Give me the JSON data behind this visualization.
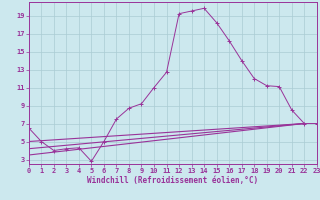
{
  "xlabel": "Windchill (Refroidissement éolien,°C)",
  "background_color": "#cce8ee",
  "grid_color": "#aaccd4",
  "line_color": "#993399",
  "xlim": [
    0,
    23
  ],
  "ylim": [
    2.5,
    20.5
  ],
  "xticks": [
    0,
    1,
    2,
    3,
    4,
    5,
    6,
    7,
    8,
    9,
    10,
    11,
    12,
    13,
    14,
    15,
    16,
    17,
    18,
    19,
    20,
    21,
    22,
    23
  ],
  "yticks": [
    3,
    5,
    7,
    9,
    11,
    13,
    15,
    17,
    19
  ],
  "curve1_x": [
    0,
    1,
    2,
    3,
    4,
    5,
    6,
    7,
    8,
    9,
    10,
    11,
    12,
    13,
    14,
    15,
    16,
    17,
    18,
    19,
    20,
    21,
    22,
    23
  ],
  "curve1_y": [
    6.5,
    5.0,
    4.0,
    4.2,
    4.3,
    2.8,
    5.0,
    7.5,
    8.7,
    9.2,
    11.0,
    12.7,
    19.2,
    19.5,
    19.8,
    18.2,
    16.2,
    14.0,
    12.0,
    11.2,
    11.1,
    8.5,
    7.0,
    7.0
  ],
  "line1_x": [
    0,
    22
  ],
  "line1_y": [
    5.0,
    7.0
  ],
  "line2_x": [
    0,
    22
  ],
  "line2_y": [
    4.2,
    7.0
  ],
  "line3_x": [
    0,
    22
  ],
  "line3_y": [
    3.5,
    7.0
  ]
}
